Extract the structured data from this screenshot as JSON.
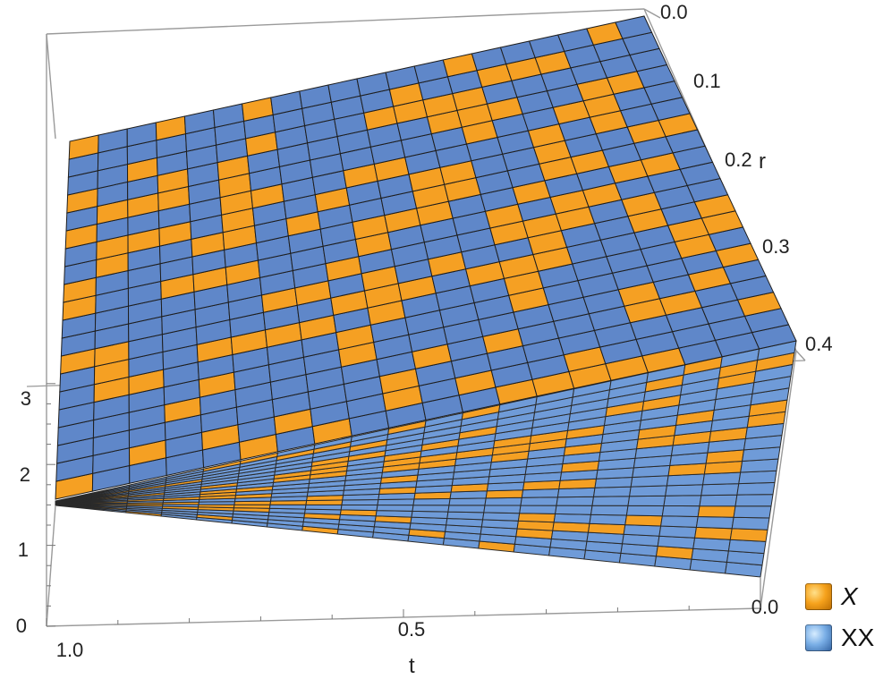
{
  "chart_data": {
    "type": "surface3d",
    "xlabel": "t",
    "ylabel": "r",
    "zlabel": "",
    "x_ticks": [
      "1.0",
      "0.5",
      "0.0"
    ],
    "y_ticks": [
      "0.0",
      "0.1",
      "0.2",
      "0.3",
      "0.4"
    ],
    "z_ticks": [
      "0",
      "1",
      "2",
      "3"
    ],
    "xlim": [
      0,
      1
    ],
    "ylim": [
      0,
      0.4
    ],
    "zlim": [
      0,
      3.4
    ],
    "mesh": 20,
    "series": [
      {
        "name": "X",
        "color": "#f5a023",
        "corner_values": {
          "t0_r0": 0.35,
          "t1_r0": 1.55,
          "t0_r0.4": 2.55,
          "t1_r0.4": 3.45
        }
      },
      {
        "name": "XX",
        "color": "#6f9bd8",
        "corner_values": {
          "t0_r0": 0.35,
          "t1_r0": 1.55,
          "t0_r0.4": 2.55,
          "t1_r0.4": 3.45
        }
      }
    ],
    "legend_position": "bottom-right"
  },
  "legend": [
    {
      "label": "X",
      "italic": true
    },
    {
      "label": "XX",
      "italic": false
    }
  ]
}
